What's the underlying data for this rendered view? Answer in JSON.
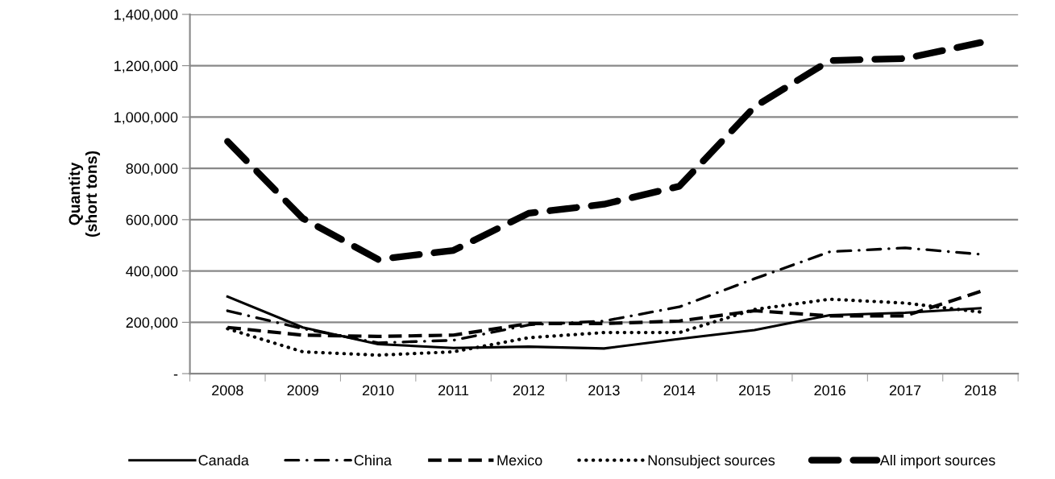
{
  "chart_data": {
    "type": "line",
    "ylabel": "Quantity\n(short tons)",
    "categories": [
      "2008",
      "2009",
      "2010",
      "2011",
      "2012",
      "2013",
      "2014",
      "2015",
      "2016",
      "2017",
      "2018"
    ],
    "series": [
      {
        "name": "Canada",
        "color": "#000000",
        "line_style": "solid",
        "values": [
          300000,
          180000,
          115000,
          100000,
          105000,
          98000,
          135000,
          170000,
          228000,
          237000,
          255000
        ]
      },
      {
        "name": "China",
        "color": "#000000",
        "line_style": "dashdot",
        "values": [
          245000,
          175000,
          120000,
          130000,
          190000,
          205000,
          260000,
          370000,
          475000,
          490000,
          465000
        ]
      },
      {
        "name": "Mexico",
        "color": "#000000",
        "line_style": "dashed",
        "values": [
          180000,
          150000,
          145000,
          150000,
          195000,
          195000,
          205000,
          245000,
          225000,
          225000,
          320000
        ]
      },
      {
        "name": "Nonsubject sources",
        "color": "#000000",
        "line_style": "dotted",
        "values": [
          175000,
          85000,
          72000,
          85000,
          140000,
          160000,
          160000,
          250000,
          290000,
          275000,
          240000
        ]
      },
      {
        "name": "All import sources",
        "color": "#000000",
        "line_style": "longdash",
        "values": [
          905000,
          605000,
          445000,
          480000,
          625000,
          660000,
          730000,
          1040000,
          1220000,
          1228000,
          1290000
        ]
      }
    ],
    "ylim": [
      0,
      1400000
    ],
    "yticks": [
      {
        "value": 0,
        "label": "-"
      },
      {
        "value": 200000,
        "label": "200,000"
      },
      {
        "value": 400000,
        "label": "400,000"
      },
      {
        "value": 600000,
        "label": "600,000"
      },
      {
        "value": 800000,
        "label": "800,000"
      },
      {
        "value": 1000000,
        "label": "1,000,000"
      },
      {
        "value": 1200000,
        "label": "1,200,000"
      },
      {
        "value": 1400000,
        "label": "1,400,000"
      }
    ],
    "grid": "y",
    "legend": "bottom",
    "marker": "none"
  }
}
